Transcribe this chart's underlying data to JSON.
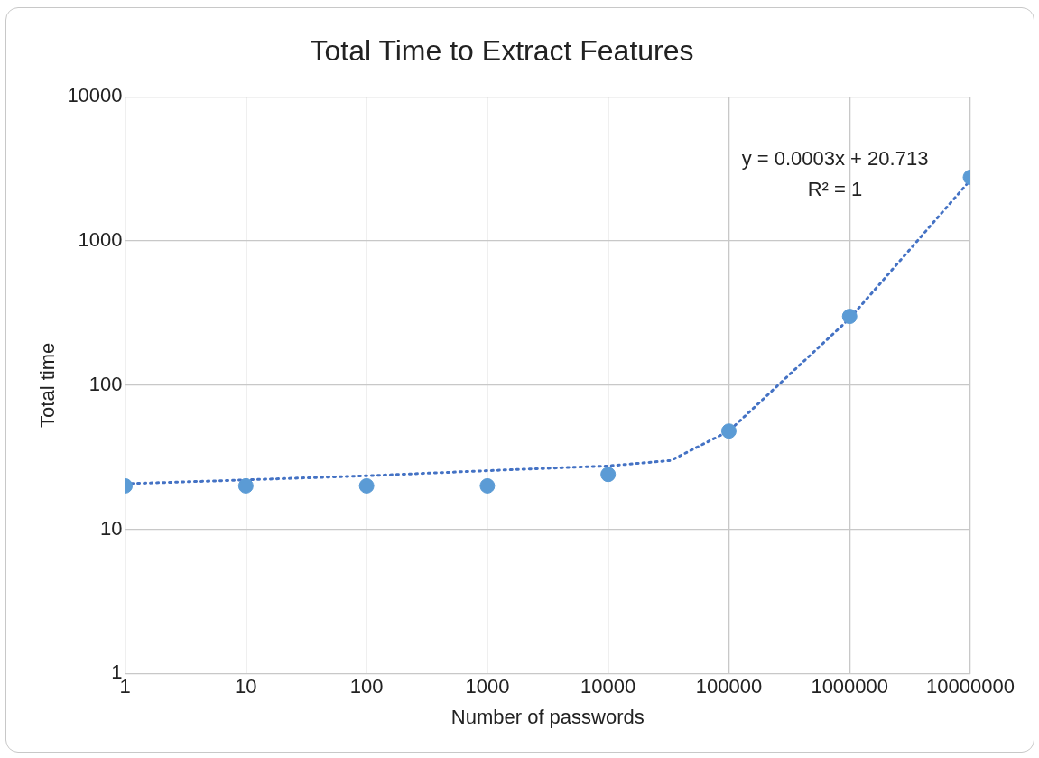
{
  "chart_data": {
    "type": "scatter",
    "title": "Total Time to Extract Features",
    "xlabel": "Number of passwords",
    "ylabel": "Total time",
    "x": [
      1,
      10,
      100,
      1000,
      10000,
      100000,
      1000000,
      10000000
    ],
    "series": [
      {
        "type": "scatter",
        "color": "#5b9bd5",
        "marker": "circle",
        "values": [
          20,
          20,
          20,
          20,
          24,
          48,
          300,
          2770
        ]
      },
      {
        "type": "line",
        "color": "#4472c4",
        "marker": "none",
        "line_style": "dotted",
        "x": [
          1,
          10,
          100,
          1000,
          10000,
          33000,
          100000,
          1000000,
          10000000
        ],
        "values": [
          20.7,
          22,
          23.5,
          25.5,
          27.5,
          30,
          48,
          290,
          2650
        ]
      }
    ],
    "annotations": [
      "y = 0.0003x + 20.713",
      "R² = 1"
    ],
    "log": "xy",
    "xlim": [
      1,
      10000000
    ],
    "xticks": [
      1,
      10,
      100,
      1000,
      10000,
      100000,
      1000000,
      10000000
    ],
    "ylim": [
      1,
      10000
    ],
    "yticks": [
      1,
      10,
      100,
      1000,
      10000
    ],
    "grid": true,
    "legend": false
  }
}
